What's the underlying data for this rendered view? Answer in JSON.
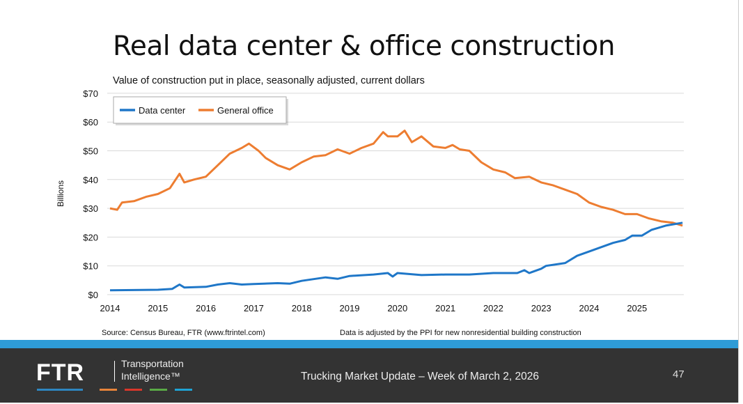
{
  "slide": {
    "title": "Real data center & office construction",
    "subtitle": "Value of construction put in place, seasonally adjusted, current dollars",
    "source": "Source: Census Bureau, FTR (www.ftrintel.com)",
    "note": "Data is adjusted by the PPI for new nonresidential building construction"
  },
  "footer": {
    "logo": "FTR",
    "logo_line1": "Transportation",
    "logo_line2": "Intelligence™",
    "text": "Trucking Market Update – Week of March 2, 2026",
    "page_number": "47",
    "band_color": "#2e9bd6",
    "bar_colors": [
      "#2e86c1",
      "#e8843a",
      "#d9372b",
      "#5aab46",
      "#1fa3d4"
    ]
  },
  "chart_data": {
    "type": "line",
    "title": "",
    "xlabel": "",
    "ylabel": "Billions",
    "xlim": [
      2014,
      2026
    ],
    "ylim": [
      0,
      70
    ],
    "yticks": [
      0,
      10,
      20,
      30,
      40,
      50,
      60,
      70
    ],
    "ytick_labels": [
      "$0",
      "$10",
      "$20",
      "$30",
      "$40",
      "$50",
      "$60",
      "$70"
    ],
    "xticks": [
      2014,
      2015,
      2016,
      2017,
      2018,
      2019,
      2020,
      2021,
      2022,
      2023,
      2024,
      2025
    ],
    "xtick_labels": [
      "2014",
      "2015",
      "2016",
      "2017",
      "2018",
      "2019",
      "2020",
      "2021",
      "2022",
      "2023",
      "2024",
      "2025"
    ],
    "grid": true,
    "legend": "top-left",
    "series": [
      {
        "name": "Data center",
        "color": "#1f77c8",
        "x": [
          2014.0,
          2014.5,
          2015.0,
          2015.3,
          2015.45,
          2015.55,
          2016.0,
          2016.25,
          2016.5,
          2016.75,
          2017.0,
          2017.5,
          2017.75,
          2018.0,
          2018.5,
          2018.75,
          2019.0,
          2019.5,
          2019.8,
          2019.9,
          2020.0,
          2020.5,
          2021.0,
          2021.5,
          2022.0,
          2022.5,
          2022.65,
          2022.75,
          2023.0,
          2023.1,
          2023.5,
          2023.75,
          2024.0,
          2024.5,
          2024.75,
          2024.9,
          2025.1,
          2025.3,
          2025.6,
          2025.95
        ],
        "y": [
          1.5,
          1.6,
          1.7,
          2.0,
          3.5,
          2.5,
          2.7,
          3.5,
          4.0,
          3.5,
          3.7,
          4.0,
          3.8,
          4.8,
          6.0,
          5.5,
          6.5,
          7.0,
          7.5,
          6.3,
          7.5,
          6.8,
          7.0,
          7.0,
          7.5,
          7.5,
          8.5,
          7.5,
          9.0,
          10.0,
          11.0,
          13.5,
          15.0,
          18.0,
          19.0,
          20.5,
          20.5,
          22.5,
          24.0,
          25.0
        ]
      },
      {
        "name": "General office",
        "color": "#ed7d31",
        "x": [
          2014.0,
          2014.15,
          2014.25,
          2014.5,
          2014.75,
          2015.0,
          2015.25,
          2015.45,
          2015.55,
          2015.75,
          2016.0,
          2016.25,
          2016.5,
          2016.75,
          2016.9,
          2017.1,
          2017.25,
          2017.5,
          2017.75,
          2018.0,
          2018.25,
          2018.5,
          2018.75,
          2019.0,
          2019.25,
          2019.5,
          2019.7,
          2019.8,
          2020.0,
          2020.15,
          2020.3,
          2020.5,
          2020.75,
          2021.0,
          2021.15,
          2021.3,
          2021.5,
          2021.75,
          2022.0,
          2022.25,
          2022.45,
          2022.75,
          2023.0,
          2023.25,
          2023.5,
          2023.75,
          2024.0,
          2024.25,
          2024.5,
          2024.75,
          2025.0,
          2025.25,
          2025.5,
          2025.75,
          2025.95
        ],
        "y": [
          30,
          29.5,
          32,
          32.5,
          34,
          35,
          37,
          42,
          39,
          40,
          41,
          45,
          49,
          51,
          52.5,
          50,
          47.5,
          45,
          43.5,
          46,
          48,
          48.5,
          50.5,
          49,
          51,
          52.5,
          56.5,
          55,
          55,
          57,
          53,
          55,
          51.5,
          51,
          52,
          50.5,
          50,
          46,
          43.5,
          42.5,
          40.5,
          41,
          39,
          38,
          36.5,
          35,
          32,
          30.5,
          29.5,
          28,
          28,
          26.5,
          25.5,
          25,
          24
        ]
      }
    ]
  }
}
